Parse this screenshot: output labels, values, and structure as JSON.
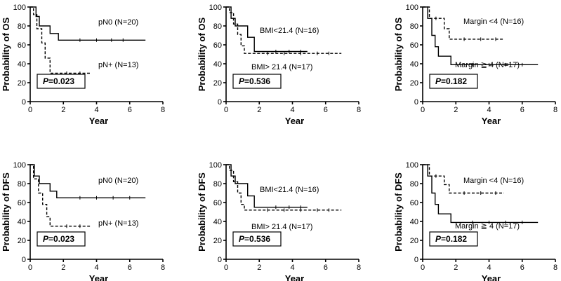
{
  "chart_data": [
    {
      "type": "line",
      "ylabel": "Probability of OS",
      "xlabel": "Year",
      "xlim": [
        0,
        8
      ],
      "ylim": [
        0,
        100
      ],
      "xticks": [
        0,
        2,
        4,
        6,
        8
      ],
      "yticks": [
        0,
        20,
        40,
        60,
        80,
        100
      ],
      "p_value": "=0.023",
      "series": [
        {
          "name": "pN0 (N=20)",
          "style": "solid",
          "steps": [
            [
              0,
              100
            ],
            [
              0.35,
              90
            ],
            [
              0.55,
              80
            ],
            [
              1.2,
              72
            ],
            [
              1.7,
              65
            ],
            [
              6.95,
              65
            ]
          ],
          "censors": [
            [
              3.0,
              65
            ],
            [
              4.0,
              65
            ],
            [
              4.9,
              65
            ],
            [
              5.6,
              65
            ]
          ]
        },
        {
          "name": "pN+  (N=13)",
          "style": "dashed",
          "steps": [
            [
              0,
              100
            ],
            [
              0.2,
              92
            ],
            [
              0.4,
              77
            ],
            [
              0.7,
              62
            ],
            [
              0.9,
              46
            ],
            [
              1.2,
              30
            ],
            [
              3.6,
              30
            ]
          ],
          "censors": [
            [
              2.2,
              30
            ],
            [
              3.0,
              30
            ]
          ]
        }
      ]
    },
    {
      "type": "line",
      "ylabel": "Probability of OS",
      "xlabel": "Year",
      "xlim": [
        0,
        8
      ],
      "ylim": [
        0,
        100
      ],
      "xticks": [
        0,
        2,
        4,
        6,
        8
      ],
      "yticks": [
        0,
        20,
        40,
        60,
        80,
        100
      ],
      "p_value": "=0.536",
      "series": [
        {
          "name": "BMI<21.4 (N=16)",
          "style": "solid",
          "steps": [
            [
              0,
              100
            ],
            [
              0.3,
              88
            ],
            [
              0.55,
              80
            ],
            [
              1.3,
              68
            ],
            [
              1.7,
              53
            ],
            [
              4.9,
              53
            ]
          ],
          "censors": [
            [
              3.0,
              53
            ],
            [
              3.8,
              53
            ],
            [
              4.5,
              53
            ]
          ]
        },
        {
          "name": "BMI> 21.4 (N=17)",
          "style": "dashed",
          "steps": [
            [
              0,
              100
            ],
            [
              0.2,
              94
            ],
            [
              0.45,
              82
            ],
            [
              0.7,
              71
            ],
            [
              0.9,
              59
            ],
            [
              1.1,
              51
            ],
            [
              6.95,
              51
            ]
          ],
          "censors": [
            [
              2.5,
              51
            ],
            [
              3.5,
              51
            ],
            [
              4.5,
              51
            ],
            [
              5.5,
              51
            ],
            [
              6.2,
              51
            ]
          ]
        }
      ]
    },
    {
      "type": "line",
      "ylabel": "Probability of OS",
      "xlabel": "Year",
      "xlim": [
        0,
        8
      ],
      "ylim": [
        0,
        100
      ],
      "xticks": [
        0,
        2,
        4,
        6,
        8
      ],
      "yticks": [
        0,
        20,
        40,
        60,
        80,
        100
      ],
      "p_value": "=0.182",
      "series": [
        {
          "name": "Margin <4 (N=16)",
          "style": "dashed",
          "steps": [
            [
              0,
              100
            ],
            [
              0.4,
              88
            ],
            [
              1.1,
              88
            ],
            [
              1.3,
              77
            ],
            [
              1.6,
              66
            ],
            [
              4.9,
              66
            ]
          ],
          "censors": [
            [
              0.8,
              88
            ],
            [
              2.5,
              66
            ],
            [
              3.5,
              66
            ],
            [
              4.4,
              66
            ]
          ]
        },
        {
          "name": "Margin ≧ 4 (N=17)",
          "style": "solid",
          "steps": [
            [
              0,
              100
            ],
            [
              0.3,
              88
            ],
            [
              0.55,
              70
            ],
            [
              0.75,
              58
            ],
            [
              0.95,
              48
            ],
            [
              1.7,
              39
            ],
            [
              6.95,
              39
            ]
          ],
          "censors": [
            [
              3.0,
              39
            ],
            [
              4.0,
              39
            ],
            [
              5.0,
              39
            ],
            [
              6.0,
              39
            ]
          ]
        }
      ]
    },
    {
      "type": "line",
      "ylabel": "Probability of DFS",
      "xlabel": "Year",
      "xlim": [
        0,
        8
      ],
      "ylim": [
        0,
        100
      ],
      "xticks": [
        0,
        2,
        4,
        6,
        8
      ],
      "yticks": [
        0,
        20,
        40,
        60,
        80,
        100
      ],
      "p_value": "=0.023",
      "series": [
        {
          "name": "pN0 (N=20)",
          "style": "solid",
          "steps": [
            [
              0,
              100
            ],
            [
              0.25,
              88
            ],
            [
              0.55,
              80
            ],
            [
              1.2,
              72
            ],
            [
              1.6,
              65
            ],
            [
              6.95,
              65
            ]
          ],
          "censors": [
            [
              3.0,
              65
            ],
            [
              4.0,
              65
            ],
            [
              5.0,
              65
            ],
            [
              6.0,
              65
            ]
          ]
        },
        {
          "name": "pN+  (N=13)",
          "style": "dashed",
          "steps": [
            [
              0,
              100
            ],
            [
              0.2,
              85
            ],
            [
              0.5,
              70
            ],
            [
              0.75,
              58
            ],
            [
              1.0,
              45
            ],
            [
              1.2,
              35
            ],
            [
              3.6,
              35
            ]
          ],
          "censors": [
            [
              2.2,
              35
            ],
            [
              3.0,
              35
            ]
          ]
        }
      ]
    },
    {
      "type": "line",
      "ylabel": "Probability of DFS",
      "xlabel": "Year",
      "xlim": [
        0,
        8
      ],
      "ylim": [
        0,
        100
      ],
      "xticks": [
        0,
        2,
        4,
        6,
        8
      ],
      "yticks": [
        0,
        20,
        40,
        60,
        80,
        100
      ],
      "p_value": "=0.536",
      "series": [
        {
          "name": "BMI<21.4 (N=16)",
          "style": "solid",
          "steps": [
            [
              0,
              100
            ],
            [
              0.3,
              88
            ],
            [
              0.55,
              80
            ],
            [
              1.3,
              67
            ],
            [
              1.7,
              55
            ],
            [
              4.9,
              55
            ]
          ],
          "censors": [
            [
              3.0,
              55
            ],
            [
              3.8,
              55
            ],
            [
              4.5,
              55
            ]
          ]
        },
        {
          "name": "BMI> 21.4 (N=17)",
          "style": "dashed",
          "steps": [
            [
              0,
              100
            ],
            [
              0.2,
              94
            ],
            [
              0.45,
              82
            ],
            [
              0.7,
              70
            ],
            [
              0.9,
              58
            ],
            [
              1.1,
              52
            ],
            [
              6.95,
              52
            ]
          ],
          "censors": [
            [
              2.5,
              52
            ],
            [
              3.5,
              52
            ],
            [
              4.5,
              52
            ],
            [
              5.5,
              52
            ],
            [
              6.2,
              52
            ]
          ]
        }
      ]
    },
    {
      "type": "line",
      "ylabel": "Probability of DFS",
      "xlabel": "Year",
      "xlim": [
        0,
        8
      ],
      "ylim": [
        0,
        100
      ],
      "xticks": [
        0,
        2,
        4,
        6,
        8
      ],
      "yticks": [
        0,
        20,
        40,
        60,
        80,
        100
      ],
      "p_value": "=0.182",
      "series": [
        {
          "name": "Margin <4 (N=16)",
          "style": "dashed",
          "steps": [
            [
              0,
              100
            ],
            [
              0.4,
              88
            ],
            [
              1.1,
              88
            ],
            [
              1.3,
              79
            ],
            [
              1.6,
              70
            ],
            [
              4.9,
              70
            ]
          ],
          "censors": [
            [
              0.8,
              88
            ],
            [
              2.5,
              70
            ],
            [
              3.5,
              70
            ],
            [
              4.4,
              70
            ]
          ]
        },
        {
          "name": "Margin ≧ 4 (N=17)",
          "style": "solid",
          "steps": [
            [
              0,
              100
            ],
            [
              0.3,
              88
            ],
            [
              0.55,
              70
            ],
            [
              0.75,
              58
            ],
            [
              0.95,
              48
            ],
            [
              1.7,
              39
            ],
            [
              6.95,
              39
            ]
          ],
          "censors": [
            [
              3.0,
              39
            ],
            [
              4.0,
              39
            ],
            [
              5.0,
              39
            ],
            [
              6.0,
              39
            ]
          ]
        }
      ]
    }
  ]
}
